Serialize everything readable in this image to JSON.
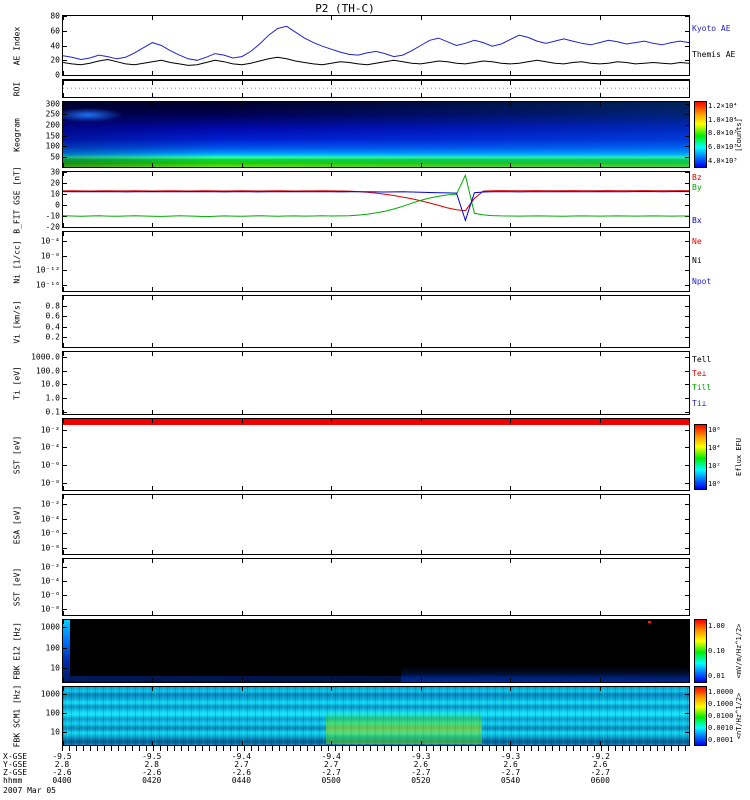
{
  "title": "P2 (TH-C)",
  "panels": [
    {
      "id": "ae",
      "left_label": "AE Index",
      "yticks": [
        {
          "t": "80",
          "f": 0
        },
        {
          "t": "60",
          "f": 0.25
        },
        {
          "t": "40",
          "f": 0.5
        },
        {
          "t": "20",
          "f": 0.75
        },
        {
          "t": "0",
          "f": 1
        }
      ],
      "legends": [
        {
          "t": "Kyoto AE",
          "c": "#2222cc",
          "f": 0.14
        },
        {
          "t": "Themis AE",
          "c": "#000000",
          "f": 0.58
        }
      ]
    },
    {
      "id": "roi",
      "left_label": "ROI",
      "yticks": [],
      "legends": []
    },
    {
      "id": "keogram",
      "left_label": "Keogram",
      "yticks": [
        {
          "t": "300",
          "f": 0.03
        },
        {
          "t": "250",
          "f": 0.19
        },
        {
          "t": "200",
          "f": 0.35
        },
        {
          "t": "150",
          "f": 0.52
        },
        {
          "t": "100",
          "f": 0.68
        },
        {
          "t": "50",
          "f": 0.84
        }
      ],
      "legends": []
    },
    {
      "id": "b",
      "left_label": "B_FIT GSE [nT]",
      "yticks": [
        {
          "t": "30",
          "f": 0
        },
        {
          "t": "20",
          "f": 0.2
        },
        {
          "t": "10",
          "f": 0.4
        },
        {
          "t": "0",
          "f": 0.6
        },
        {
          "t": "-10",
          "f": 0.8
        },
        {
          "t": "-20",
          "f": 1
        }
      ],
      "legends": [
        {
          "t": "Bz",
          "c": "#dd0000",
          "f": 0.02
        },
        {
          "t": "By",
          "c": "#00aa00",
          "f": 0.2
        },
        {
          "t": "Bx",
          "c": "#0000dd",
          "f": 0.8
        }
      ]
    },
    {
      "id": "ni",
      "left_label": "Ni [1/cc]",
      "yticks": [
        {
          "t": "10⁻⁴",
          "f": 0.15
        },
        {
          "t": "10⁻⁸",
          "f": 0.4
        },
        {
          "t": "10⁻¹²",
          "f": 0.65
        },
        {
          "t": "10⁻¹⁶",
          "f": 0.9
        }
      ],
      "legends": [
        {
          "t": "Ne",
          "c": "#dd0000",
          "f": 0.08
        },
        {
          "t": "Ni",
          "c": "#000000",
          "f": 0.4
        },
        {
          "t": "Npot",
          "c": "#2222cc",
          "f": 0.76
        }
      ]
    },
    {
      "id": "vi",
      "left_label": "Vi [km/s]",
      "yticks": [
        {
          "t": "0.8",
          "f": 0.2
        },
        {
          "t": "0.6",
          "f": 0.4
        },
        {
          "t": "0.4",
          "f": 0.6
        },
        {
          "t": "0.2",
          "f": 0.8
        }
      ],
      "legends": []
    },
    {
      "id": "ti",
      "left_label": "Ti [eV]",
      "yticks": [
        {
          "t": "1000.0",
          "f": 0.08
        },
        {
          "t": "100.0",
          "f": 0.3
        },
        {
          "t": "10.0",
          "f": 0.52
        },
        {
          "t": "1.0",
          "f": 0.74
        },
        {
          "t": "0.1",
          "f": 0.96
        }
      ],
      "legends": [
        {
          "t": "Tell",
          "c": "#000000",
          "f": 0.05
        },
        {
          "t": "Te⊥",
          "c": "#dd0000",
          "f": 0.28
        },
        {
          "t": "Till",
          "c": "#00aa00",
          "f": 0.5
        },
        {
          "t": "Ti⊥",
          "c": "#2222cc",
          "f": 0.76
        }
      ]
    },
    {
      "id": "sst1",
      "left_label": "SST [eV]",
      "yticks": [
        {
          "t": "10⁻²",
          "f": 0.15
        },
        {
          "t": "10⁻⁴",
          "f": 0.4
        },
        {
          "t": "10⁻⁶",
          "f": 0.65
        },
        {
          "t": "10⁻⁸",
          "f": 0.9
        }
      ],
      "legends": []
    },
    {
      "id": "esa",
      "left_label": "ESA [eV]",
      "yticks": [
        {
          "t": "10⁻²",
          "f": 0.15
        },
        {
          "t": "10⁻⁴",
          "f": 0.4
        },
        {
          "t": "10⁻⁶",
          "f": 0.65
        },
        {
          "t": "10⁻⁸",
          "f": 0.9
        }
      ],
      "legends": []
    },
    {
      "id": "sst2",
      "left_label": "SST [eV]",
      "yticks": [
        {
          "t": "10⁻²",
          "f": 0.15
        },
        {
          "t": "10⁻⁴",
          "f": 0.4
        },
        {
          "t": "10⁻⁶",
          "f": 0.65
        },
        {
          "t": "10⁻⁸",
          "f": 0.9
        }
      ],
      "legends": []
    },
    {
      "id": "fbk1",
      "left_label": "FBK E12 [Hz]",
      "yticks": [
        {
          "t": "1000",
          "f": 0.12
        },
        {
          "t": "100",
          "f": 0.45
        },
        {
          "t": "10",
          "f": 0.78
        }
      ],
      "legends": []
    },
    {
      "id": "fbk2",
      "left_label": "FBK SCM1 [Hz]",
      "yticks": [
        {
          "t": "1000",
          "f": 0.12
        },
        {
          "t": "100",
          "f": 0.45
        },
        {
          "t": "10",
          "f": 0.78
        }
      ],
      "legends": []
    }
  ],
  "colorbars": [
    {
      "id": "keogram",
      "unit": "[counts]",
      "ticks": [
        {
          "t": "1.2×10⁴",
          "f": 0.06
        },
        {
          "t": "1.0×10⁴",
          "f": 0.27
        },
        {
          "t": "8.0×10³",
          "f": 0.48
        },
        {
          "t": "6.0×10³",
          "f": 0.69
        },
        {
          "t": "4.0×10³",
          "f": 0.9
        }
      ]
    },
    {
      "id": "sst",
      "unit": "Eflux EFU",
      "ticks": [
        {
          "t": "10⁶",
          "f": 0.08
        },
        {
          "t": "10⁴",
          "f": 0.36
        },
        {
          "t": "10²",
          "f": 0.64
        },
        {
          "t": "10⁰",
          "f": 0.92
        }
      ]
    },
    {
      "id": "fbk1",
      "unit": "<mV/m/Hz^1/2>",
      "ticks": [
        {
          "t": "1.00",
          "f": 0.1
        },
        {
          "t": "0.10",
          "f": 0.5
        },
        {
          "t": "0.01",
          "f": 0.9
        }
      ]
    },
    {
      "id": "fbk2",
      "unit": "<nT/Hz^1/2>",
      "ticks": [
        {
          "t": "1.0000",
          "f": 0.08
        },
        {
          "t": "0.1000",
          "f": 0.29
        },
        {
          "t": "0.0100",
          "f": 0.5
        },
        {
          "t": "0.0010",
          "f": 0.71
        },
        {
          "t": "0.0001",
          "f": 0.92
        }
      ]
    }
  ],
  "time_axis": {
    "range_minutes": 140,
    "rows": [
      {
        "label": "X-GSE",
        "values": [
          "-9.5",
          "-9.5",
          "-9.4",
          "-9.4",
          "-9.3",
          "-9.3",
          "-9.2"
        ]
      },
      {
        "label": "Y-GSE",
        "values": [
          "2.8",
          "2.8",
          "2.7",
          "2.7",
          "2.6",
          "2.6",
          "2.6"
        ]
      },
      {
        "label": "Z-GSE",
        "values": [
          "-2.6",
          "-2.6",
          "-2.6",
          "-2.7",
          "-2.7",
          "-2.7",
          "-2.7"
        ]
      },
      {
        "label": "hhmm",
        "values": [
          "0400",
          "0420",
          "0440",
          "0500",
          "0520",
          "0540",
          "0600"
        ]
      }
    ],
    "date": "2007 Mar 05"
  },
  "chart_data": [
    {
      "panel": "ae",
      "type": "line",
      "title": "AE Index",
      "ylabel": "AE Index",
      "ylim": [
        0,
        80
      ],
      "x": {
        "unit": "min after 04:00 UT",
        "start": 0,
        "step": 2
      },
      "series": [
        {
          "name": "Kyoto AE",
          "color": "#2222cc",
          "values": [
            26,
            24,
            21,
            23,
            27,
            25,
            22,
            24,
            30,
            37,
            44,
            40,
            33,
            27,
            22,
            20,
            24,
            29,
            27,
            23,
            25,
            32,
            42,
            54,
            63,
            66,
            58,
            50,
            44,
            39,
            35,
            31,
            28,
            27,
            30,
            32,
            29,
            25,
            27,
            33,
            40,
            47,
            50,
            45,
            40,
            43,
            47,
            44,
            39,
            42,
            48,
            54,
            51,
            46,
            43,
            46,
            49,
            46,
            43,
            41,
            44,
            47,
            45,
            42,
            44,
            46,
            43,
            41,
            44,
            46,
            44
          ]
        },
        {
          "name": "Themis AE",
          "color": "#000000",
          "values": [
            17,
            15,
            14,
            16,
            19,
            21,
            18,
            15,
            14,
            16,
            18,
            20,
            17,
            15,
            13,
            14,
            17,
            20,
            18,
            15,
            14,
            16,
            19,
            22,
            24,
            22,
            19,
            17,
            15,
            14,
            16,
            18,
            17,
            15,
            14,
            16,
            18,
            20,
            18,
            16,
            15,
            17,
            19,
            18,
            16,
            15,
            17,
            19,
            18,
            16,
            15,
            16,
            18,
            20,
            18,
            16,
            15,
            17,
            18,
            16,
            15,
            16,
            18,
            17,
            15,
            16,
            17,
            16,
            15,
            17,
            16
          ]
        }
      ]
    },
    {
      "panel": "roi",
      "type": "line",
      "title": "ROI",
      "ylim": [
        0,
        1
      ],
      "x": {
        "unit": "min after 04:00 UT",
        "start": 0,
        "step": 140
      },
      "series": [
        {
          "name": "ROI flag",
          "color": "#00c8c8",
          "linestyle": "dotted",
          "values": [
            0.55,
            0.55
          ]
        }
      ]
    },
    {
      "panel": "b",
      "type": "line",
      "title": "B_FIT GSE",
      "ylabel": "B_FIT GSE [nT]",
      "ylim": [
        -20,
        30
      ],
      "x": {
        "unit": "min after 04:00 UT",
        "start": 0,
        "step": 2
      },
      "series": [
        {
          "name": "Bz",
          "color": "#dd0000",
          "values": [
            12.8,
            12.9,
            12.8,
            12.7,
            12.8,
            12.9,
            12.8,
            12.8,
            12.9,
            12.8,
            12.7,
            12.8,
            12.9,
            12.8,
            12.7,
            12.8,
            12.9,
            12.8,
            12.7,
            12.8,
            12.9,
            12.8,
            12.7,
            12.8,
            12.9,
            12.8,
            12.7,
            12.8,
            12.8,
            12.9,
            12.8,
            12.7,
            12.6,
            12.2,
            11.6,
            10.8,
            9.8,
            8.6,
            7.2,
            5.6,
            3.8,
            1.8,
            -0.4,
            -2.6,
            -4.4,
            -5.2,
            6.0,
            12.6,
            13.0,
            13.1,
            13.0,
            12.9,
            13.0,
            13.1,
            13.0,
            12.9,
            13.0,
            13.1,
            13.0,
            12.9,
            13.0,
            13.1,
            13.0,
            12.9,
            13.0,
            13.1,
            13.0,
            12.9,
            13.0,
            13.1,
            13.0
          ]
        },
        {
          "name": "By",
          "color": "#00aa00",
          "values": [
            -9.8,
            -10.0,
            -10.2,
            -10.0,
            -9.8,
            -10.1,
            -10.3,
            -10.0,
            -9.7,
            -10.0,
            -10.2,
            -10.4,
            -10.1,
            -9.8,
            -10.0,
            -10.3,
            -10.5,
            -10.2,
            -9.9,
            -10.1,
            -10.3,
            -10.0,
            -9.8,
            -10.0,
            -10.2,
            -10.0,
            -9.9,
            -10.1,
            -10.0,
            -9.8,
            -10.0,
            -9.9,
            -9.7,
            -9.2,
            -8.4,
            -7.2,
            -5.6,
            -3.6,
            -1.2,
            1.6,
            4.2,
            6.4,
            8.0,
            9.2,
            9.8,
            27.0,
            -7.5,
            -9.0,
            -9.6,
            -9.9,
            -10.0,
            -10.1,
            -10.0,
            -9.9,
            -10.0,
            -10.1,
            -10.2,
            -10.0,
            -9.9,
            -10.0,
            -10.1,
            -10.0,
            -9.9,
            -10.0,
            -10.1,
            -10.0,
            -9.9,
            -10.0,
            -10.1,
            -10.0,
            -10.0
          ]
        },
        {
          "name": "Bx",
          "color": "#0000dd",
          "values": [
            12.2,
            12.1,
            12.0,
            12.1,
            12.2,
            12.1,
            12.0,
            11.9,
            12.0,
            12.1,
            12.2,
            12.1,
            12.0,
            12.0,
            12.1,
            12.2,
            12.1,
            12.0,
            11.9,
            12.0,
            12.1,
            12.0,
            11.9,
            12.0,
            12.1,
            12.2,
            12.1,
            12.0,
            12.0,
            12.1,
            12.0,
            11.9,
            12.0,
            12.1,
            12.0,
            11.9,
            11.8,
            11.9,
            12.0,
            11.8,
            11.6,
            11.4,
            11.2,
            11.0,
            10.8,
            -14.0,
            11.2,
            11.8,
            12.0,
            12.1,
            12.0,
            11.9,
            12.0,
            12.1,
            12.0,
            12.1,
            12.2,
            12.1,
            12.0,
            12.1,
            12.2,
            12.1,
            12.0,
            12.1,
            12.2,
            12.3,
            12.2,
            12.1,
            12.2,
            12.3,
            12.2
          ]
        }
      ]
    },
    {
      "panel": "keogram",
      "type": "heatmap",
      "title": "Keogram",
      "y_range": [
        30,
        300
      ],
      "colorbar_ref": "keogram",
      "summary": "dark navy at top bins brightening to blue mid-panel, bright cyan band near 82% depth, green luminosity band along bottom rows, bright blue patch at top-left"
    },
    {
      "panel": "ni",
      "type": "line",
      "series": [],
      "summary": "no data plotted"
    },
    {
      "panel": "vi",
      "type": "line",
      "series": [],
      "summary": "no data plotted"
    },
    {
      "panel": "ti",
      "type": "line",
      "series": [],
      "summary": "no data plotted"
    },
    {
      "panel": "sst1",
      "type": "heatmap",
      "colorbar_ref": "sst",
      "summary": "saturated red band across full width at top of panel, remainder empty white"
    },
    {
      "panel": "esa",
      "type": "heatmap",
      "summary": "no data plotted"
    },
    {
      "panel": "sst2",
      "type": "heatmap",
      "summary": "no data plotted"
    },
    {
      "panel": "fbk1",
      "type": "heatmap",
      "colorbar_ref": "fbk1",
      "summary": "mostly black below threshold, cyan-blue strip at left edge, faint dark-blue enhancement lower-right, red speck top right"
    },
    {
      "panel": "fbk2",
      "type": "heatmap",
      "colorbar_ref": "fbk2",
      "summary": "banded cyan-teal spectrum across all times, green-yellow enhancement ~0500-0535 at low frequencies"
    }
  ]
}
